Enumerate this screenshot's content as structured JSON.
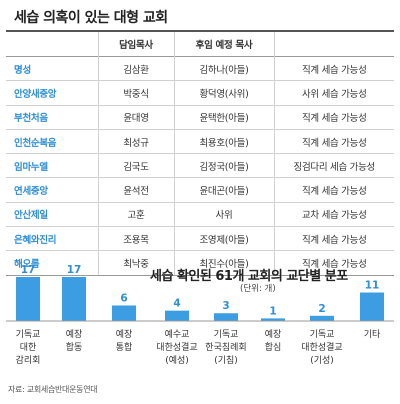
{
  "table": {
    "title": "세습 의혹이 있는 대형 교회",
    "headers": [
      "",
      "담임목사",
      "후임 예정 목사",
      ""
    ],
    "rows": [
      {
        "church": "명성",
        "pastor": "김삼환",
        "successor": "김하나(아들)",
        "type": "직계 세습 가능성"
      },
      {
        "church": "안양새중앙",
        "pastor": "박중식",
        "successor": "황덕영(사위)",
        "type": "사위 세습 가능성"
      },
      {
        "church": "부천처음",
        "pastor": "윤대영",
        "successor": "윤택한(아들)",
        "type": "직계 세습 가능성"
      },
      {
        "church": "인천순복음",
        "pastor": "최성규",
        "successor": "최용호(아들)",
        "type": "직계 세습 가능성"
      },
      {
        "church": "임마누엘",
        "pastor": "김국도",
        "successor": "김정국(아들)",
        "type": "징검다리 세습 가능성"
      },
      {
        "church": "연세중앙",
        "pastor": "윤석전",
        "successor": "윤대곤(아들)",
        "type": "직계 세습 가능성"
      },
      {
        "church": "안산제일",
        "pastor": "고훈",
        "successor": "사위",
        "type": "교차 세습 가능성"
      },
      {
        "church": "은혜와진리",
        "pastor": "조용목",
        "successor": "조영제(아들)",
        "type": "직계 세습 가능성"
      },
      {
        "church": "해오름",
        "pastor": "최낙중",
        "successor": "최진수(아들)",
        "type": "직계 세습 가능성"
      }
    ]
  },
  "chart_data": {
    "type": "bar",
    "title": "세습 확인된 61개 교회의 교단별 분포",
    "unit": "(단위: 개)",
    "categories": [
      [
        "기독교",
        "대한",
        "감리회"
      ],
      [
        "예장",
        "합동"
      ],
      [
        "예장",
        "통합"
      ],
      [
        "예수교",
        "대한성결교",
        "(예성)"
      ],
      [
        "기독교",
        "한국침례회",
        "(기침)"
      ],
      [
        "예장",
        "합심"
      ],
      [
        "기독교",
        "대한성결교",
        "(기성)"
      ],
      [
        "기타"
      ]
    ],
    "values": [
      17,
      17,
      6,
      4,
      3,
      1,
      2,
      11
    ],
    "ylim": [
      0,
      17
    ],
    "grid": false,
    "colors": {
      "bar": "#3d9de2",
      "value": "#2f8fd6",
      "category": "#333333",
      "baseline": "#999999"
    }
  },
  "source": "자료: 교회세습반대운동연대"
}
